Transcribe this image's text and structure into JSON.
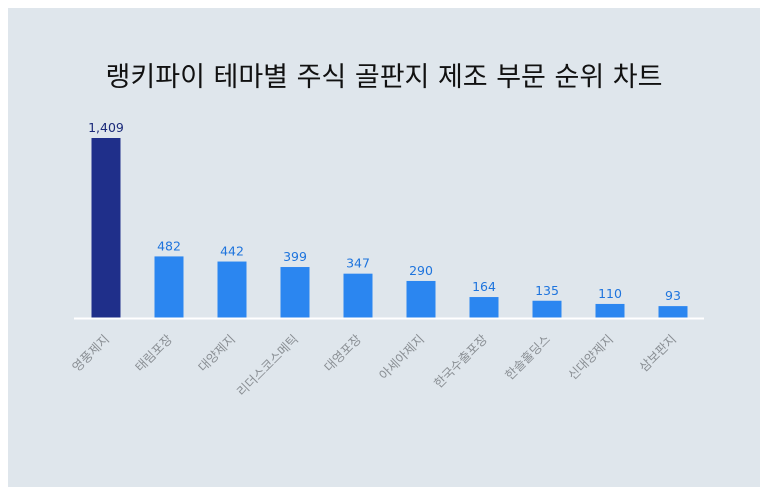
{
  "chart_data": {
    "type": "bar",
    "title": "랭키파이 테마별 주식 골판지 제조 부문 순위 차트",
    "categories": [
      "영풍제지",
      "태림포장",
      "대양제지",
      "리더스코스메틱",
      "대영포장",
      "아세아제지",
      "한국수출포장",
      "한솔홀딩스",
      "신대양제지",
      "삼보판지"
    ],
    "values": [
      1409,
      482,
      442,
      399,
      347,
      290,
      164,
      135,
      110,
      93
    ],
    "value_labels": [
      "1,409",
      "482",
      "442",
      "399",
      "347",
      "290",
      "164",
      "135",
      "110",
      "93"
    ],
    "ylim": [
      0,
      1409
    ],
    "grid": false,
    "legend": "none",
    "xlabel": "",
    "ylabel": ""
  },
  "colors": {
    "background": "#dfe6ec",
    "highlight_bar": "#1f2f8a",
    "bar": "#2b86f0",
    "highlight_label": "#1b2a7a",
    "label": "#1e74dd",
    "axis": "#ffffff",
    "tick_label": "#8a8f94"
  }
}
